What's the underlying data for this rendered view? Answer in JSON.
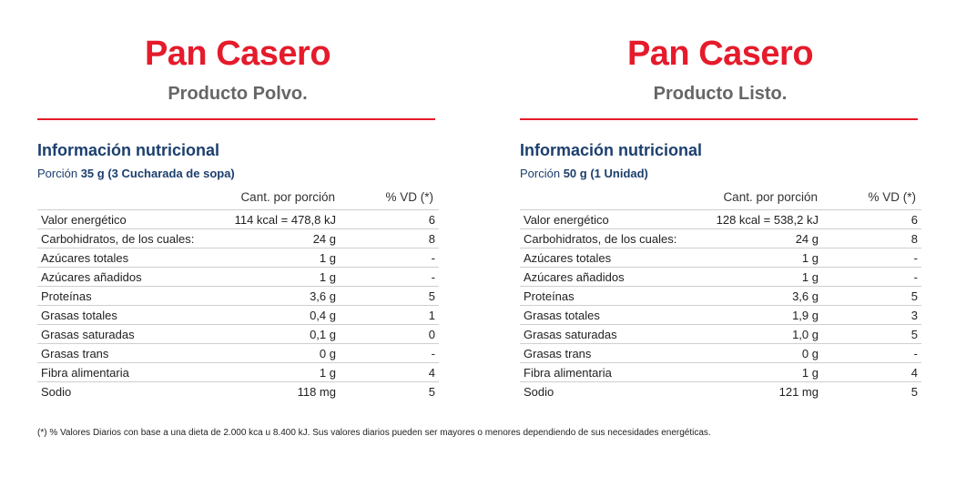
{
  "panels": [
    {
      "title": "Pan Casero",
      "subtitle": "Producto Polvo.",
      "section_title": "Información nutricional",
      "portion_label": "Porción",
      "portion_value": "35 g (3 Cucharada de sopa)",
      "col_amount": "Cant. por porción",
      "col_vd": "% VD (*)",
      "rows": [
        {
          "name": "Valor energético",
          "amount": "114 kcal = 478,8 kJ",
          "vd": "6"
        },
        {
          "name": "Carbohidratos, de los cuales:",
          "amount": "24 g",
          "vd": "8"
        },
        {
          "name": "Azúcares totales",
          "amount": "1 g",
          "vd": "-"
        },
        {
          "name": "Azúcares añadidos",
          "amount": "1 g",
          "vd": "-"
        },
        {
          "name": "Proteínas",
          "amount": "3,6 g",
          "vd": "5"
        },
        {
          "name": "Grasas totales",
          "amount": "0,4 g",
          "vd": "1"
        },
        {
          "name": "Grasas saturadas",
          "amount": "0,1 g",
          "vd": "0"
        },
        {
          "name": "Grasas trans",
          "amount": "0 g",
          "vd": "-"
        },
        {
          "name": "Fibra alimentaria",
          "amount": "1 g",
          "vd": "4"
        },
        {
          "name": "Sodio",
          "amount": "118 mg",
          "vd": "5"
        }
      ]
    },
    {
      "title": "Pan Casero",
      "subtitle": "Producto Listo.",
      "section_title": "Información nutricional",
      "portion_label": "Porción",
      "portion_value": "50 g (1 Unidad)",
      "col_amount": "Cant. por porción",
      "col_vd": "% VD (*)",
      "rows": [
        {
          "name": "Valor energético",
          "amount": "128  kcal = 538,2 kJ",
          "vd": "6"
        },
        {
          "name": "Carbohidratos, de los cuales:",
          "amount": "24 g",
          "vd": "8"
        },
        {
          "name": "Azúcares totales",
          "amount": "1 g",
          "vd": "-"
        },
        {
          "name": "Azúcares añadidos",
          "amount": "1 g",
          "vd": "-"
        },
        {
          "name": "Proteínas",
          "amount": "3,6 g",
          "vd": "5"
        },
        {
          "name": "Grasas totales",
          "amount": "1,9 g",
          "vd": "3"
        },
        {
          "name": "Grasas saturadas",
          "amount": "1,0 g",
          "vd": "5"
        },
        {
          "name": "Grasas trans",
          "amount": "0 g",
          "vd": "-"
        },
        {
          "name": "Fibra alimentaria",
          "amount": "1 g",
          "vd": "4"
        },
        {
          "name": "Sodio",
          "amount": "121 mg",
          "vd": "5"
        }
      ]
    }
  ],
  "footnote": "(*) % Valores Diarios con base a una dieta de 2.000 kca u 8.400 kJ. Sus valores diarios pueden ser mayores o menores dependiendo de sus necesidades energéticas.",
  "colors": {
    "accent": "#e51b2b",
    "heading": "#1c3f6e",
    "subtitle": "#666666"
  }
}
